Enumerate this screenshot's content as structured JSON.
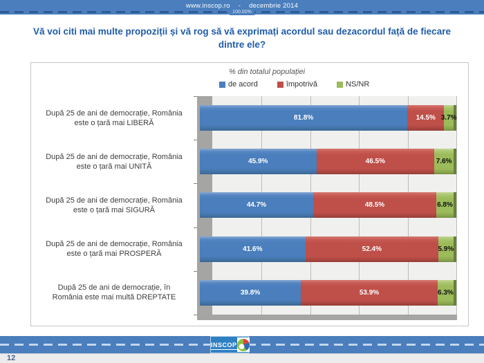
{
  "top_bar": {
    "site": "www.inscop.ro",
    "separator": "-",
    "date": "decembrie 2014",
    "sample_label": "100.00%"
  },
  "question_title": "Vă voi citi mai multe propoziții și vă rog să vă exprimați acordul sau dezacordul față de fiecare dintre ele?",
  "chart_data": {
    "type": "bar",
    "orientation": "horizontal",
    "stacked": true,
    "title": "% din totalul populației",
    "legend_position": "top",
    "x_axis": {
      "min": 0,
      "max": 100,
      "unit": "%",
      "gridline_step": 20,
      "grid": true
    },
    "categories": [
      "După 25 de ani de democrație, România este o țară mai LIBERĂ",
      "După 25 de ani de democrație, România este o țară mai UNITĂ",
      "După 25 de ani de democrație, România este o țară mai SIGURĂ",
      "După 25 de ani de democrație, România este o țară mai PROSPERĂ",
      "După 25 de ani de democrație, în România este mai multă DREPTATE"
    ],
    "category_lines": [
      [
        "După 25 de ani de democrație, România",
        "este o țară mai LIBERĂ"
      ],
      [
        "După 25 de ani de democrație, România",
        "este o țară mai UNITĂ"
      ],
      [
        "După 25 de ani de democrație, România",
        "este o țară mai SIGURĂ"
      ],
      [
        "După 25 de ani de democrație, România",
        "este o țară mai PROSPERĂ"
      ],
      [
        "După 25 de ani de democrație, în",
        "România este mai multă DREPTATE"
      ]
    ],
    "series": [
      {
        "name": "de acord",
        "color": "#4a7ebc",
        "values": [
          81.8,
          45.9,
          44.7,
          41.6,
          39.8
        ]
      },
      {
        "name": "împotrivă",
        "color": "#bf4f49",
        "values": [
          14.5,
          46.5,
          48.5,
          52.4,
          53.9
        ]
      },
      {
        "name": "NS/NR",
        "color": "#9cbb5a",
        "values": [
          3.7,
          7.6,
          6.8,
          5.9,
          6.3
        ]
      }
    ],
    "value_suffix": "%"
  },
  "footer": {
    "logo_text": "INSCOP",
    "page_number": "12"
  }
}
